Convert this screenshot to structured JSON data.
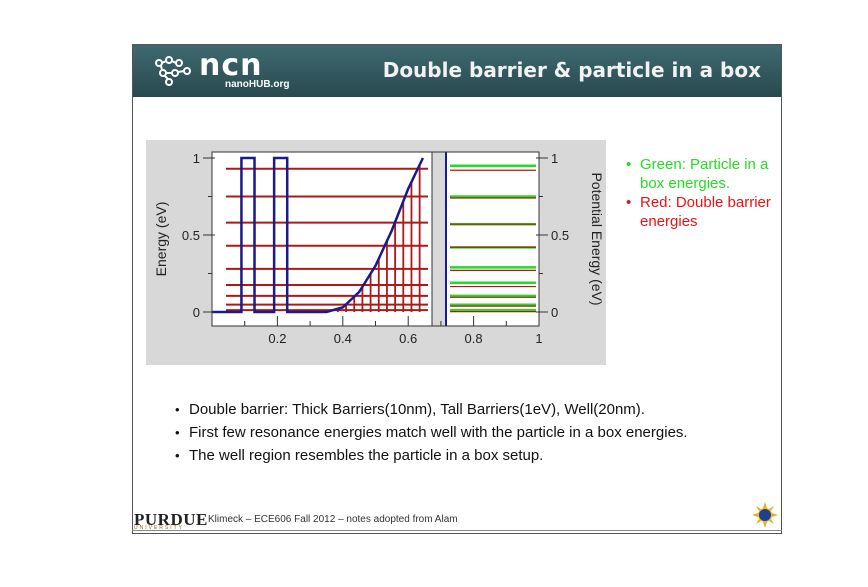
{
  "header": {
    "logo_text": "ncn",
    "logo_sub": "nanoHUB.org",
    "title": "Double barrier & particle in a box"
  },
  "chart_data": {
    "type": "line",
    "xlabel": "",
    "ylabel": "Energy (eV)",
    "ylabel_right": "Potential Energy (eV)",
    "xlim": [
      0.0,
      1.0
    ],
    "ylim": [
      0.0,
      1.0
    ],
    "xticks": [
      "0.2",
      "0.4",
      "0.6",
      "0.8",
      "1"
    ],
    "yticks": [
      "0",
      "0.5",
      "1"
    ],
    "yticks_right": [
      "0",
      "0.5",
      "1"
    ],
    "potential_profile": {
      "color": "#1a1a8c",
      "x": [
        0.0,
        0.09,
        0.09,
        0.13,
        0.13,
        0.19,
        0.19,
        0.23,
        0.23,
        0.35,
        0.4,
        0.45,
        0.5,
        0.55,
        0.6,
        0.645
      ],
      "y": [
        0.0,
        0.0,
        1.0,
        1.0,
        0.0,
        0.0,
        1.0,
        1.0,
        0.0,
        0.0,
        0.03,
        0.13,
        0.3,
        0.53,
        0.8,
        1.0
      ]
    },
    "red_double_barrier_energies": [
      0.012,
      0.048,
      0.105,
      0.175,
      0.28,
      0.43,
      0.58,
      0.75,
      0.93
    ],
    "green_particle_in_box_energies": [
      0.012,
      0.047,
      0.105,
      0.19,
      0.29,
      0.42,
      0.57,
      0.75,
      0.95
    ],
    "vertical_lines": {
      "color": "#b01818",
      "x": [
        0.385,
        0.41,
        0.435,
        0.46,
        0.485,
        0.51,
        0.535,
        0.56,
        0.585,
        0.61,
        0.635
      ]
    }
  },
  "legend": {
    "bullet": "•",
    "green_text": "Green: Particle in a box energies.",
    "red_text": "Red: Double barrier energies"
  },
  "bullets": {
    "b1": "Double barrier: Thick Barriers(10nm), Tall Barriers(1eV), Well(20nm).",
    "b2": "First few resonance energies match well with the particle in a box energies.",
    "b3": "The well region resembles the particle in a box setup."
  },
  "footer": {
    "purdue": "PURDUE",
    "purdue_sub": "UNIVERSITY",
    "credit": "Klimeck – ECE606 Fall 2012 – notes adopted from Alam"
  },
  "colors": {
    "header_bg": "#315a60",
    "plot_bg": "#d8d8d8",
    "profile": "#1a1a8c",
    "red": "#b01818",
    "green": "#22dd22"
  }
}
